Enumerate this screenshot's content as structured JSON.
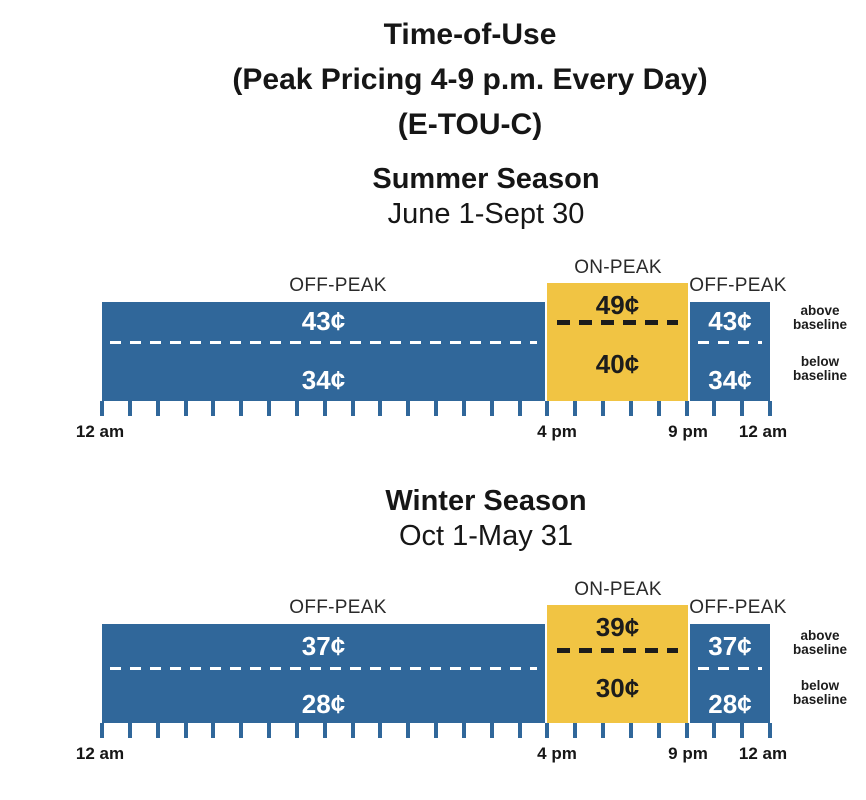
{
  "header": {
    "title_lines": [
      "Time-of-Use",
      "(Peak Pricing 4-9 p.m. Every Day)",
      "(E-TOU-C)"
    ]
  },
  "labels": {
    "on_peak": "ON-PEAK",
    "off_peak": "OFF-PEAK",
    "legend_above": [
      "above",
      "baseline"
    ],
    "legend_below": [
      "below",
      "baseline"
    ],
    "time_ticks": [
      "12 am",
      "4 pm",
      "9 pm",
      "12 am"
    ]
  },
  "colors": {
    "bar_blue": "#30679A",
    "bar_yellow": "#F1C443",
    "price_on_blue": "#FFFFFF",
    "price_on_yellow": "#1C1C1C",
    "dash_on_blue": "#FFFFFF",
    "dash_on_yellow": "#1C1C1C",
    "text": "#1C1C1C"
  },
  "seasons": [
    {
      "name": "Summer Season",
      "dates": "June 1-Sept 30",
      "off_peak_above": "43¢",
      "off_peak_below": "34¢",
      "on_peak_above": "49¢",
      "on_peak_below": "40¢"
    },
    {
      "name": "Winter Season",
      "dates": "Oct 1-May 31",
      "off_peak_above": "37¢",
      "off_peak_below": "28¢",
      "on_peak_above": "39¢",
      "on_peak_below": "30¢"
    }
  ],
  "chart_data": [
    {
      "type": "bar",
      "title": "Summer Season",
      "subtitle": "June 1-Sept 30",
      "plan": "E-TOU-C (Time-of-Use, Peak Pricing 4-9 p.m. Every Day)",
      "x_unit": "hour of day",
      "x_range": [
        0,
        24
      ],
      "x_tick_interval_hours": 1,
      "x_labeled_ticks": [
        {
          "hour": 0,
          "label": "12 am"
        },
        {
          "hour": 16,
          "label": "4 pm"
        },
        {
          "hour": 21,
          "label": "9 pm"
        },
        {
          "hour": 24,
          "label": "12 am"
        }
      ],
      "y_unit": "cents per kWh",
      "periods": [
        {
          "label": "OFF-PEAK",
          "start_hour": 0,
          "end_hour": 16,
          "rate_above_baseline_cents": 43,
          "rate_below_baseline_cents": 34,
          "color": "#30679A"
        },
        {
          "label": "ON-PEAK",
          "start_hour": 16,
          "end_hour": 21,
          "rate_above_baseline_cents": 49,
          "rate_below_baseline_cents": 40,
          "color": "#F1C443"
        },
        {
          "label": "OFF-PEAK",
          "start_hour": 21,
          "end_hour": 24,
          "rate_above_baseline_cents": 43,
          "rate_below_baseline_cents": 34,
          "color": "#30679A"
        }
      ]
    },
    {
      "type": "bar",
      "title": "Winter Season",
      "subtitle": "Oct 1-May 31",
      "plan": "E-TOU-C (Time-of-Use, Peak Pricing 4-9 p.m. Every Day)",
      "x_unit": "hour of day",
      "x_range": [
        0,
        24
      ],
      "x_tick_interval_hours": 1,
      "x_labeled_ticks": [
        {
          "hour": 0,
          "label": "12 am"
        },
        {
          "hour": 16,
          "label": "4 pm"
        },
        {
          "hour": 21,
          "label": "9 pm"
        },
        {
          "hour": 24,
          "label": "12 am"
        }
      ],
      "y_unit": "cents per kWh",
      "periods": [
        {
          "label": "OFF-PEAK",
          "start_hour": 0,
          "end_hour": 16,
          "rate_above_baseline_cents": 37,
          "rate_below_baseline_cents": 28,
          "color": "#30679A"
        },
        {
          "label": "ON-PEAK",
          "start_hour": 16,
          "end_hour": 21,
          "rate_above_baseline_cents": 39,
          "rate_below_baseline_cents": 30,
          "color": "#F1C443"
        },
        {
          "label": "OFF-PEAK",
          "start_hour": 21,
          "end_hour": 24,
          "rate_above_baseline_cents": 37,
          "rate_below_baseline_cents": 28,
          "color": "#30679A"
        }
      ]
    }
  ]
}
